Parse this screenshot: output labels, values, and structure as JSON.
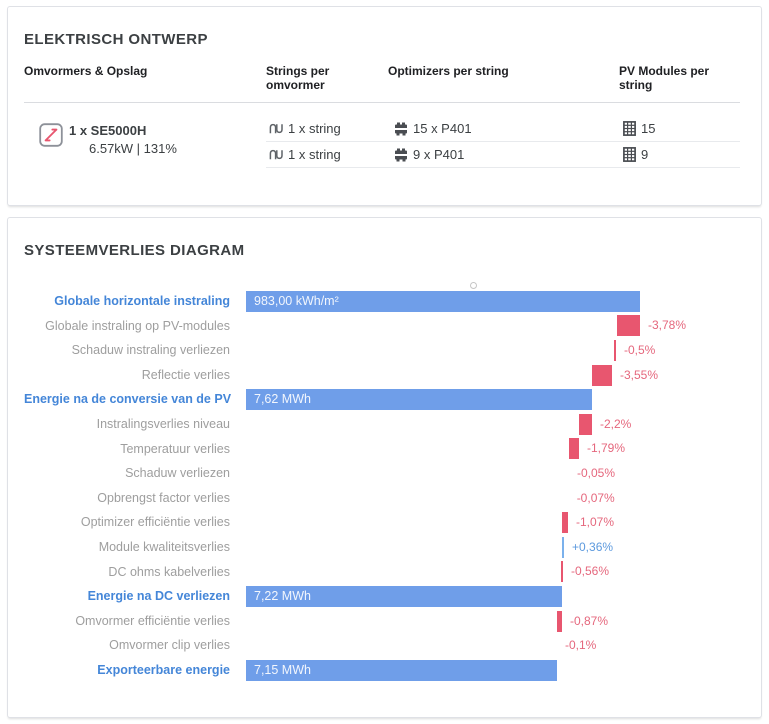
{
  "cards": {
    "electrical": {
      "title": "ELEKTRISCH ONTWERP",
      "columns": {
        "inverters": "Omvormers & Opslag",
        "strings": "Strings per omvormer",
        "optimizers": "Optimizers per string",
        "modules": "PV Modules per string"
      },
      "inverter": {
        "name": "1 x SE5000H",
        "spec": "6.57kW | 131%"
      },
      "rows": [
        {
          "strings": "1 x string",
          "optimizers": "15 x P401",
          "modules": "15"
        },
        {
          "strings": "1 x string",
          "optimizers": "9 x P401",
          "modules": "9"
        }
      ]
    },
    "losses": {
      "title": "SYSTEEMVERLIES DIAGRAM",
      "chart_data": {
        "type": "bar",
        "subtype": "horizontal-waterfall",
        "title": "SYSTEEMVERLIES DIAGRAM",
        "grid": false,
        "legend": false,
        "x_axis": {
          "min": 0,
          "max": 1,
          "visible": false
        },
        "colors": {
          "total_bar": "#6f9ee9",
          "loss_bar": "#e8566f",
          "gain_bar": "#7bb1ec"
        },
        "rows": [
          {
            "label": "Globale horizontale instraling",
            "kind": "total",
            "value": 983.0,
            "unit": "kWh/m²",
            "value_label": "983,00 kWh/m²",
            "x0": 0,
            "x1": 1.0
          },
          {
            "label": "Globale instraling op PV-modules",
            "kind": "loss",
            "value": -3.78,
            "unit": "%",
            "value_label": "-3,78%",
            "x0": 0.9416,
            "x1": 1.0
          },
          {
            "label": "Schaduw instraling verliezen",
            "kind": "loss",
            "value": -0.5,
            "unit": "%",
            "value_label": "-0,5%",
            "x0": 0.934,
            "x1": 0.9391
          },
          {
            "label": "Reflectie verlies",
            "kind": "loss",
            "value": -3.55,
            "unit": "%",
            "value_label": "-3,55%",
            "x0": 0.8782,
            "x1": 0.9289
          },
          {
            "label": "Energie na de conversie van de PV",
            "kind": "total",
            "value": 7.62,
            "unit": "MWh",
            "value_label": "7,62 MWh",
            "x0": 0,
            "x1": 0.8782
          },
          {
            "label": "Instralingsverlies niveau",
            "kind": "loss",
            "value": -2.2,
            "unit": "%",
            "value_label": "-2,2%",
            "x0": 0.8452,
            "x1": 0.8782
          },
          {
            "label": "Temperatuur verlies",
            "kind": "loss",
            "value": -1.79,
            "unit": "%",
            "value_label": "-1,79%",
            "x0": 0.8198,
            "x1": 0.8452
          },
          {
            "label": "Schaduw verliezen",
            "kind": "loss",
            "value": -0.05,
            "unit": "%",
            "value_label": "-0,05%",
            "x0": 0.8198,
            "x1": 0.8198
          },
          {
            "label": "Opbrengst factor verlies",
            "kind": "loss",
            "value": -0.07,
            "unit": "%",
            "value_label": "-0,07%",
            "x0": 0.819,
            "x1": 0.819
          },
          {
            "label": "Optimizer efficiëntie verlies",
            "kind": "loss",
            "value": -1.07,
            "unit": "%",
            "value_label": "-1,07%",
            "x0": 0.802,
            "x1": 0.8173
          },
          {
            "label": "Module kwaliteitsverlies",
            "kind": "gain",
            "value": 0.36,
            "unit": "%",
            "value_label": "+0,36%",
            "x0": 0.802,
            "x1": 0.8071
          },
          {
            "label": "DC ohms kabelverlies",
            "kind": "loss",
            "value": -0.56,
            "unit": "%",
            "value_label": "-0,56%",
            "x0": 0.7995,
            "x1": 0.8046
          },
          {
            "label": "Energie na DC verliezen",
            "kind": "total",
            "value": 7.22,
            "unit": "MWh",
            "value_label": "7,22 MWh",
            "x0": 0,
            "x1": 0.802
          },
          {
            "label": "Omvormer efficiëntie verlies",
            "kind": "loss",
            "value": -0.87,
            "unit": "%",
            "value_label": "-0,87%",
            "x0": 0.7893,
            "x1": 0.802
          },
          {
            "label": "Omvormer clip verlies",
            "kind": "loss",
            "value": -0.1,
            "unit": "%",
            "value_label": "-0,1%",
            "x0": 0.7893,
            "x1": 0.7893
          },
          {
            "label": "Exporteerbare energie",
            "kind": "total",
            "value": 7.15,
            "unit": "MWh",
            "value_label": "7,15 MWh",
            "x0": 0,
            "x1": 0.7893
          }
        ]
      }
    }
  },
  "colors": {
    "total_label_text": "#4486d8",
    "gray_label_text": "#9e9e9e",
    "loss_value_text": "#e5677d",
    "gain_value_text": "#5d9ade",
    "inverter_icon_red": "#e8566f"
  }
}
